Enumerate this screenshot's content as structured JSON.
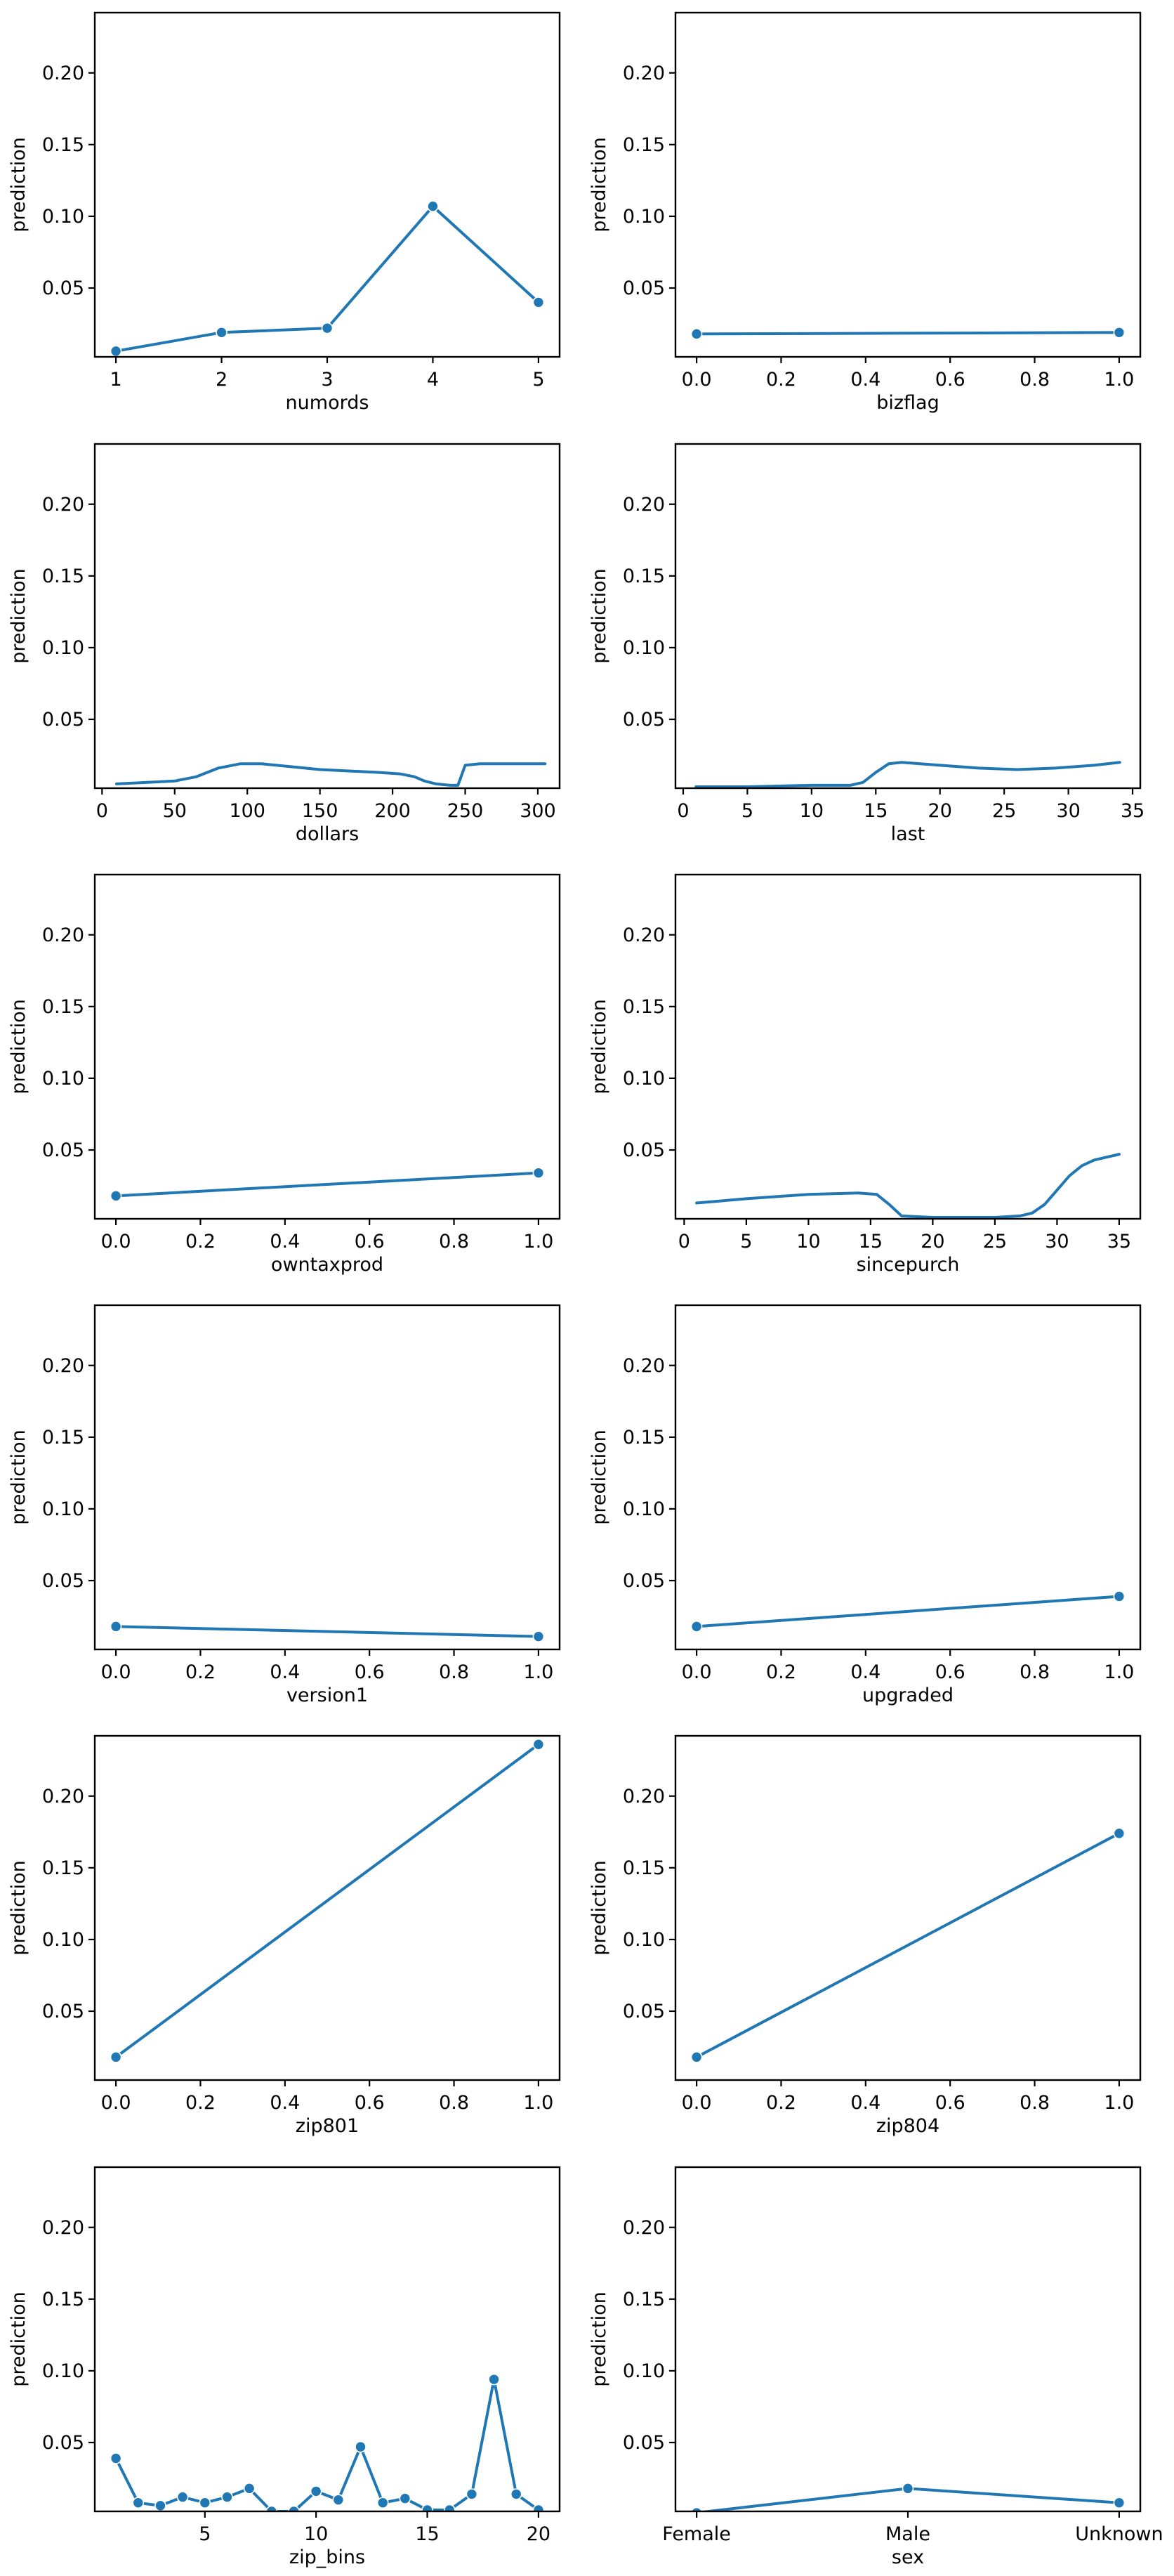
{
  "chart_data": [
    {
      "type": "line",
      "xlabel": "numords",
      "ylabel": "prediction",
      "ylim": [
        0.002,
        0.242
      ],
      "yticks": [
        0.05,
        0.1,
        0.15,
        0.2
      ],
      "ytick_labels": [
        "0.05",
        "0.10",
        "0.15",
        "0.20"
      ],
      "xlim": [
        0.8,
        5.2
      ],
      "xticks": [
        1,
        2,
        3,
        4,
        5
      ],
      "xtick_labels": [
        "1",
        "2",
        "3",
        "4",
        "5"
      ],
      "markers": true,
      "x": [
        1,
        2,
        3,
        4,
        5
      ],
      "y": [
        0.006,
        0.019,
        0.022,
        0.107,
        0.04
      ]
    },
    {
      "type": "line",
      "xlabel": "bizflag",
      "ylabel": "prediction",
      "ylim": [
        0.002,
        0.242
      ],
      "yticks": [
        0.05,
        0.1,
        0.15,
        0.2
      ],
      "ytick_labels": [
        "0.05",
        "0.10",
        "0.15",
        "0.20"
      ],
      "xlim": [
        -0.05,
        1.05
      ],
      "xticks": [
        0,
        0.2,
        0.4,
        0.6,
        0.8,
        1.0
      ],
      "xtick_labels": [
        "0.0",
        "0.2",
        "0.4",
        "0.6",
        "0.8",
        "1.0"
      ],
      "markers": true,
      "x": [
        0,
        1
      ],
      "y": [
        0.018,
        0.019
      ]
    },
    {
      "type": "line",
      "xlabel": "dollars",
      "ylabel": "prediction",
      "ylim": [
        0.002,
        0.242
      ],
      "yticks": [
        0.05,
        0.1,
        0.15,
        0.2
      ],
      "ytick_labels": [
        "0.05",
        "0.10",
        "0.15",
        "0.20"
      ],
      "xlim": [
        -5,
        315
      ],
      "xticks": [
        0,
        50,
        100,
        150,
        200,
        250,
        300
      ],
      "xtick_labels": [
        "0",
        "50",
        "100",
        "150",
        "200",
        "250",
        "300"
      ],
      "markers": false,
      "x": [
        10,
        30,
        50,
        65,
        80,
        95,
        110,
        130,
        150,
        170,
        190,
        205,
        215,
        222,
        230,
        240,
        245,
        250,
        260,
        280,
        305
      ],
      "y": [
        0.005,
        0.006,
        0.007,
        0.01,
        0.016,
        0.019,
        0.019,
        0.017,
        0.015,
        0.014,
        0.013,
        0.012,
        0.01,
        0.007,
        0.005,
        0.004,
        0.004,
        0.018,
        0.019,
        0.019,
        0.019
      ]
    },
    {
      "type": "line",
      "xlabel": "last",
      "ylabel": "prediction",
      "ylim": [
        0.002,
        0.242
      ],
      "yticks": [
        0.05,
        0.1,
        0.15,
        0.2
      ],
      "ytick_labels": [
        "0.05",
        "0.10",
        "0.15",
        "0.20"
      ],
      "xlim": [
        -0.6,
        35.6
      ],
      "xticks": [
        0,
        5,
        10,
        15,
        20,
        25,
        30,
        35
      ],
      "xtick_labels": [
        "0",
        "5",
        "10",
        "15",
        "20",
        "25",
        "30",
        "35"
      ],
      "markers": false,
      "x": [
        1,
        5,
        10,
        13,
        14,
        15,
        16,
        17,
        20,
        23,
        26,
        29,
        32,
        34
      ],
      "y": [
        0.003,
        0.003,
        0.004,
        0.004,
        0.006,
        0.013,
        0.019,
        0.02,
        0.018,
        0.016,
        0.015,
        0.016,
        0.018,
        0.02
      ]
    },
    {
      "type": "line",
      "xlabel": "owntaxprod",
      "ylabel": "prediction",
      "ylim": [
        0.002,
        0.242
      ],
      "yticks": [
        0.05,
        0.1,
        0.15,
        0.2
      ],
      "ytick_labels": [
        "0.05",
        "0.10",
        "0.15",
        "0.20"
      ],
      "xlim": [
        -0.05,
        1.05
      ],
      "xticks": [
        0,
        0.2,
        0.4,
        0.6,
        0.8,
        1.0
      ],
      "xtick_labels": [
        "0.0",
        "0.2",
        "0.4",
        "0.6",
        "0.8",
        "1.0"
      ],
      "markers": true,
      "x": [
        0,
        1
      ],
      "y": [
        0.018,
        0.034
      ]
    },
    {
      "type": "line",
      "xlabel": "sincepurch",
      "ylabel": "prediction",
      "ylim": [
        0.002,
        0.242
      ],
      "yticks": [
        0.05,
        0.1,
        0.15,
        0.2
      ],
      "ytick_labels": [
        "0.05",
        "0.10",
        "0.15",
        "0.20"
      ],
      "xlim": [
        -0.7,
        36.7
      ],
      "xticks": [
        0,
        5,
        10,
        15,
        20,
        25,
        30,
        35
      ],
      "xtick_labels": [
        "0",
        "5",
        "10",
        "15",
        "20",
        "25",
        "30",
        "35"
      ],
      "markers": false,
      "x": [
        1,
        5,
        10,
        14,
        15.5,
        16.5,
        17.5,
        20,
        25,
        27,
        28,
        29,
        30,
        31,
        32,
        33,
        34,
        35
      ],
      "y": [
        0.013,
        0.016,
        0.019,
        0.02,
        0.019,
        0.012,
        0.004,
        0.003,
        0.003,
        0.004,
        0.006,
        0.012,
        0.022,
        0.032,
        0.039,
        0.043,
        0.045,
        0.047
      ]
    },
    {
      "type": "line",
      "xlabel": "version1",
      "ylabel": "prediction",
      "ylim": [
        0.002,
        0.242
      ],
      "yticks": [
        0.05,
        0.1,
        0.15,
        0.2
      ],
      "ytick_labels": [
        "0.05",
        "0.10",
        "0.15",
        "0.20"
      ],
      "xlim": [
        -0.05,
        1.05
      ],
      "xticks": [
        0,
        0.2,
        0.4,
        0.6,
        0.8,
        1.0
      ],
      "xtick_labels": [
        "0.0",
        "0.2",
        "0.4",
        "0.6",
        "0.8",
        "1.0"
      ],
      "markers": true,
      "x": [
        0,
        1
      ],
      "y": [
        0.018,
        0.011
      ]
    },
    {
      "type": "line",
      "xlabel": "upgraded",
      "ylabel": "prediction",
      "ylim": [
        0.002,
        0.242
      ],
      "yticks": [
        0.05,
        0.1,
        0.15,
        0.2
      ],
      "ytick_labels": [
        "0.05",
        "0.10",
        "0.15",
        "0.20"
      ],
      "xlim": [
        -0.05,
        1.05
      ],
      "xticks": [
        0,
        0.2,
        0.4,
        0.6,
        0.8,
        1.0
      ],
      "xtick_labels": [
        "0.0",
        "0.2",
        "0.4",
        "0.6",
        "0.8",
        "1.0"
      ],
      "markers": true,
      "x": [
        0,
        1
      ],
      "y": [
        0.018,
        0.039
      ]
    },
    {
      "type": "line",
      "xlabel": "zip801",
      "ylabel": "prediction",
      "ylim": [
        0.002,
        0.242
      ],
      "yticks": [
        0.05,
        0.1,
        0.15,
        0.2
      ],
      "ytick_labels": [
        "0.05",
        "0.10",
        "0.15",
        "0.20"
      ],
      "xlim": [
        -0.05,
        1.05
      ],
      "xticks": [
        0,
        0.2,
        0.4,
        0.6,
        0.8,
        1.0
      ],
      "xtick_labels": [
        "0.0",
        "0.2",
        "0.4",
        "0.6",
        "0.8",
        "1.0"
      ],
      "markers": true,
      "x": [
        0,
        1
      ],
      "y": [
        0.018,
        0.236
      ]
    },
    {
      "type": "line",
      "xlabel": "zip804",
      "ylabel": "prediction",
      "ylim": [
        0.002,
        0.242
      ],
      "yticks": [
        0.05,
        0.1,
        0.15,
        0.2
      ],
      "ytick_labels": [
        "0.05",
        "0.10",
        "0.15",
        "0.20"
      ],
      "xlim": [
        -0.05,
        1.05
      ],
      "xticks": [
        0,
        0.2,
        0.4,
        0.6,
        0.8,
        1.0
      ],
      "xtick_labels": [
        "0.0",
        "0.2",
        "0.4",
        "0.6",
        "0.8",
        "1.0"
      ],
      "markers": true,
      "x": [
        0,
        1
      ],
      "y": [
        0.018,
        0.174
      ]
    },
    {
      "type": "line",
      "xlabel": "zip_bins",
      "ylabel": "prediction",
      "ylim": [
        0.002,
        0.242
      ],
      "yticks": [
        0.05,
        0.1,
        0.15,
        0.2
      ],
      "ytick_labels": [
        "0.05",
        "0.10",
        "0.15",
        "0.20"
      ],
      "xlim": [
        0.05,
        20.95
      ],
      "xticks": [
        5,
        10,
        15,
        20
      ],
      "xtick_labels": [
        "5",
        "10",
        "15",
        "20"
      ],
      "markers": true,
      "x": [
        1,
        2,
        3,
        4,
        5,
        6,
        7,
        8,
        9,
        10,
        11,
        12,
        13,
        14,
        15,
        16,
        17,
        18,
        19,
        20
      ],
      "y": [
        0.039,
        0.008,
        0.006,
        0.012,
        0.008,
        0.012,
        0.018,
        0.002,
        0.002,
        0.016,
        0.01,
        0.047,
        0.008,
        0.011,
        0.003,
        0.003,
        0.014,
        0.094,
        0.014,
        0.003
      ]
    },
    {
      "type": "line",
      "xlabel": "sex",
      "ylabel": "prediction",
      "ylim": [
        0.002,
        0.242
      ],
      "yticks": [
        0.05,
        0.1,
        0.15,
        0.2
      ],
      "ytick_labels": [
        "0.05",
        "0.10",
        "0.15",
        "0.20"
      ],
      "xlim": [
        -0.1,
        2.1
      ],
      "xticks": [
        0,
        1,
        2
      ],
      "xtick_labels": [
        "Female",
        "Male",
        "Unknown"
      ],
      "markers": true,
      "x": [
        0,
        1,
        2
      ],
      "y": [
        0.001,
        0.018,
        0.008
      ]
    }
  ],
  "colors": {
    "series": "#1f77b4",
    "frame": "#000000",
    "background": "#ffffff"
  }
}
